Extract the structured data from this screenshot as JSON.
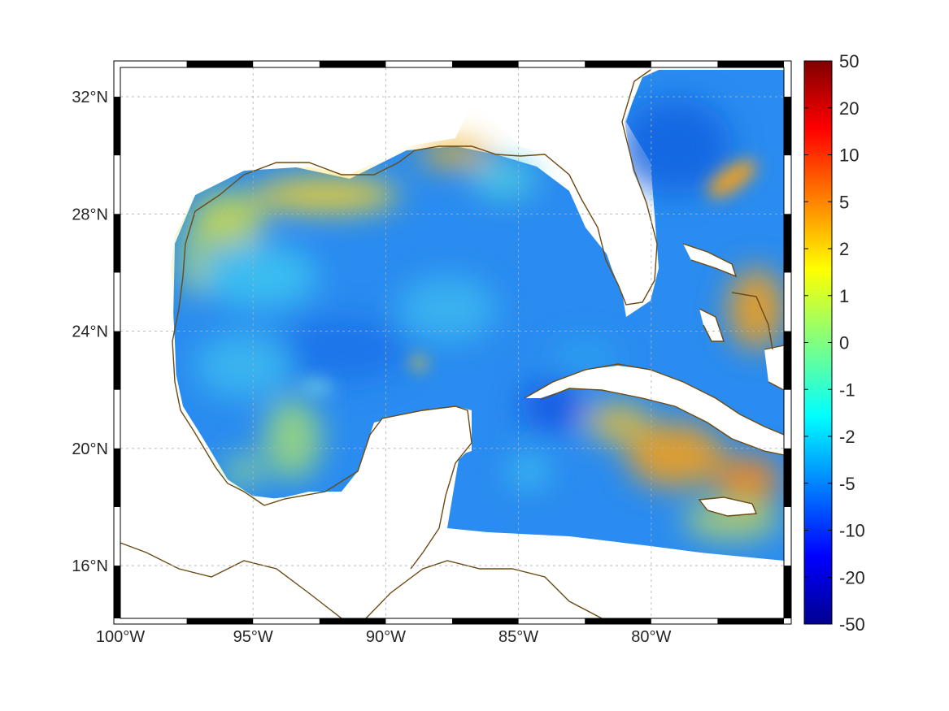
{
  "map": {
    "x_ticks": [
      {
        "lon": -100,
        "label": "100°W"
      },
      {
        "lon": -95,
        "label": "95°W"
      },
      {
        "lon": -90,
        "label": "90°W"
      },
      {
        "lon": -85,
        "label": "85°W"
      },
      {
        "lon": -80,
        "label": "80°W"
      }
    ],
    "y_ticks": [
      {
        "lat": 32,
        "label": "32°N"
      },
      {
        "lat": 28,
        "label": "28°N"
      },
      {
        "lat": 24,
        "label": "24°N"
      },
      {
        "lat": 20,
        "label": "20°N"
      },
      {
        "lat": 16,
        "label": "16°N"
      }
    ],
    "lon_range": [
      -100,
      -75
    ],
    "lat_range": [
      14.2,
      33
    ],
    "grid": true,
    "colors": {
      "coastline": "#6b4a14",
      "ocean_base": "#2a8cf0",
      "land": "#ffffff"
    }
  },
  "colorbar": {
    "colormap": "jet",
    "tick_labels": [
      "50",
      "20",
      "10",
      "5",
      "2",
      "1",
      "0",
      "-1",
      "-2",
      "-5",
      "-10",
      "-20",
      "-50"
    ]
  }
}
